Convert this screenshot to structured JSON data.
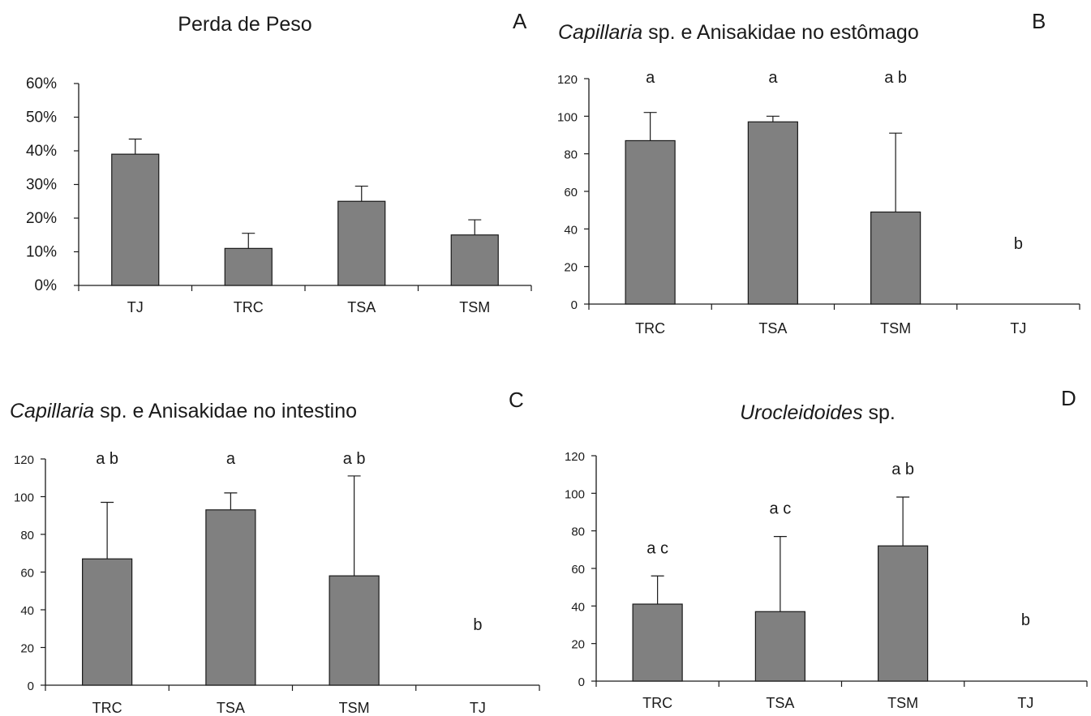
{
  "colors": {
    "bar": "#808080",
    "bar_stroke": "#1a1a1a",
    "axis": "#1a1a1a"
  },
  "chart_data": [
    {
      "type": "bar",
      "panel_label": "A",
      "title": "Perda de Peso",
      "title_italic": "",
      "title_rest": "",
      "categories": [
        "TJ",
        "TRC",
        "TSA",
        "TSM"
      ],
      "values": [
        0.39,
        0.11,
        0.25,
        0.15
      ],
      "errors": [
        0.045,
        0.045,
        0.045,
        0.045
      ],
      "significance": [
        "",
        "",
        "",
        ""
      ],
      "ylim": [
        0,
        0.6
      ],
      "yticks": [
        0,
        0.1,
        0.2,
        0.3,
        0.4,
        0.5,
        0.6
      ],
      "ytick_labels": [
        "0%",
        "10%",
        "20%",
        "30%",
        "40%",
        "50%",
        "60%"
      ],
      "xlabel": "",
      "ylabel": "",
      "grid": false
    },
    {
      "type": "bar",
      "panel_label": "B",
      "title": "",
      "title_italic": "Capillaria",
      "title_rest": " sp. e Anisakidae no estômago",
      "categories": [
        "TRC",
        "TSA",
        "TSM",
        "TJ"
      ],
      "values": [
        87,
        97,
        49,
        0
      ],
      "errors": [
        15,
        3,
        42,
        0
      ],
      "significance": [
        "a",
        "a",
        "a b",
        "b"
      ],
      "ylim": [
        0,
        120
      ],
      "yticks": [
        0,
        20,
        40,
        60,
        80,
        100,
        120
      ],
      "ytick_labels": [
        "0",
        "20",
        "40",
        "60",
        "80",
        "100",
        "120"
      ],
      "xlabel": "",
      "ylabel": "",
      "grid": false
    },
    {
      "type": "bar",
      "panel_label": "C",
      "title": "",
      "title_italic": "Capillaria",
      "title_rest": " sp. e Anisakidae no intestino",
      "categories": [
        "TRC",
        "TSA",
        "TSM",
        "TJ"
      ],
      "values": [
        67,
        93,
        58,
        0
      ],
      "errors": [
        30,
        9,
        53,
        0
      ],
      "significance": [
        "a b",
        "a",
        "a b",
        "b"
      ],
      "ylim": [
        0,
        120
      ],
      "yticks": [
        0,
        20,
        40,
        60,
        80,
        100,
        120
      ],
      "ytick_labels": [
        "0",
        "20",
        "40",
        "60",
        "80",
        "100",
        "120"
      ],
      "xlabel": "",
      "ylabel": "",
      "grid": false
    },
    {
      "type": "bar",
      "panel_label": "D",
      "title": "",
      "title_italic": "Urocleidoides",
      "title_rest": " sp.",
      "categories": [
        "TRC",
        "TSA",
        "TSM",
        "TJ"
      ],
      "values": [
        41,
        37,
        72,
        0
      ],
      "errors": [
        15,
        40,
        26,
        0
      ],
      "significance": [
        "a c",
        "a c",
        "a b",
        "b"
      ],
      "ylim": [
        0,
        120
      ],
      "yticks": [
        0,
        20,
        40,
        60,
        80,
        100,
        120
      ],
      "ytick_labels": [
        "0",
        "20",
        "40",
        "60",
        "80",
        "100",
        "120"
      ],
      "xlabel": "",
      "ylabel": "",
      "grid": false
    }
  ]
}
